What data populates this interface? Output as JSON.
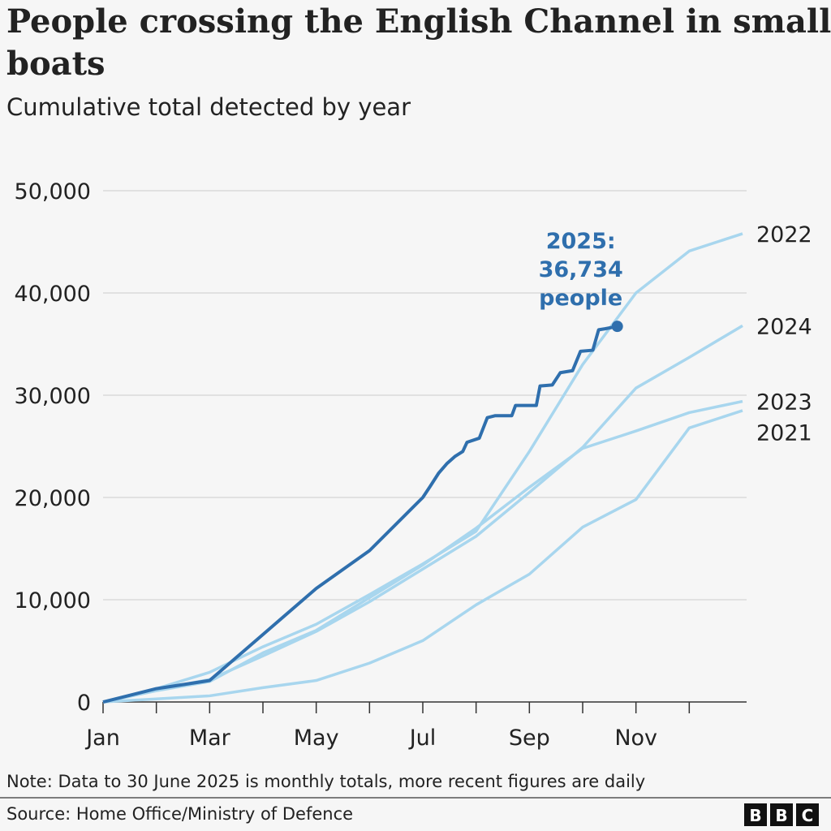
{
  "chart_data": {
    "type": "line",
    "title": [
      "People crossing the English Channel in small",
      "boats"
    ],
    "subtitle": "Cumulative total detected by year",
    "x": [
      0,
      1,
      2,
      3,
      4,
      5,
      6,
      7,
      8,
      9,
      10,
      11,
      12
    ],
    "xlim": [
      0,
      12
    ],
    "xticks": [
      {
        "value": 0,
        "label": "Jan"
      },
      {
        "value": 1,
        "label": null
      },
      {
        "value": 2,
        "label": "Mar"
      },
      {
        "value": 3,
        "label": null
      },
      {
        "value": 4,
        "label": "May"
      },
      {
        "value": 5,
        "label": null
      },
      {
        "value": 6,
        "label": "Jul"
      },
      {
        "value": 7,
        "label": null
      },
      {
        "value": 8,
        "label": "Sep"
      },
      {
        "value": 9,
        "label": null
      },
      {
        "value": 10,
        "label": "Nov"
      },
      {
        "value": 11,
        "label": null
      }
    ],
    "ylim": [
      0,
      50000
    ],
    "yticks": [
      {
        "value": 0,
        "label": "0"
      },
      {
        "value": 10000,
        "label": "10,000"
      },
      {
        "value": 20000,
        "label": "20,000"
      },
      {
        "value": 30000,
        "label": "30,000"
      },
      {
        "value": 40000,
        "label": "40,000"
      },
      {
        "value": 50000,
        "label": "50,000"
      }
    ],
    "grid": true,
    "series": [
      {
        "name": "2022",
        "color": "#a8d6ee",
        "values": [
          0,
          1300,
          2900,
          5400,
          7600,
          10500,
          13500,
          16700,
          24500,
          33000,
          40000,
          44100,
          45800
        ]
      },
      {
        "name": "2024",
        "color": "#a8d6ee",
        "values": [
          0,
          1200,
          2200,
          4500,
          6900,
          9800,
          13000,
          16200,
          20500,
          24900,
          30700,
          33700,
          36800
        ]
      },
      {
        "name": "2023",
        "color": "#a8d6ee",
        "values": [
          0,
          1100,
          2000,
          4800,
          7000,
          10200,
          13400,
          17000,
          21000,
          24800,
          26500,
          28300,
          29400
        ]
      },
      {
        "name": "2021",
        "color": "#a8d6ee",
        "values": [
          0,
          300,
          600,
          1400,
          2100,
          3800,
          6000,
          9500,
          12500,
          17100,
          19800,
          26800,
          28500
        ]
      },
      {
        "color": "#2f6fad",
        "endpoint": true,
        "x": [
          0,
          1,
          2,
          3,
          4,
          5,
          6,
          6.14,
          6.3,
          6.45,
          6.6,
          6.75,
          6.83,
          7.06,
          7.21,
          7.36,
          7.67,
          7.74,
          8.13,
          8.2,
          8.43,
          8.58,
          8.81,
          8.96,
          9.19,
          9.3,
          9.42,
          9.65
        ],
        "values": [
          0,
          1300,
          2100,
          6600,
          11100,
          14800,
          20000,
          21100,
          22400,
          23300,
          24000,
          24500,
          25400,
          25800,
          27800,
          28000,
          28000,
          29000,
          29000,
          30900,
          31000,
          32200,
          32400,
          34300,
          34400,
          36400,
          36500,
          36734
        ]
      }
    ],
    "annotation": [
      "2025:",
      "36,734",
      "people"
    ],
    "note": "Note: Data to 30 June 2025 is monthly totals, more recent figures are daily",
    "source": "Source: Home Office/Ministry of Defence",
    "logo": [
      "B",
      "B",
      "C"
    ]
  }
}
